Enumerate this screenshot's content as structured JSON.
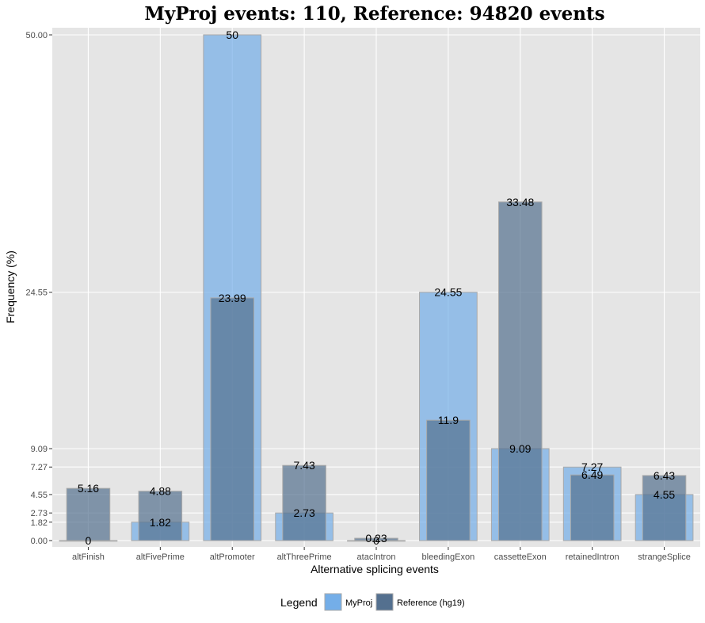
{
  "chart_data": {
    "type": "bar",
    "title": "MyProj events: 110, Reference: 94820 events",
    "xlabel": "Alternative splicing events",
    "ylabel": "Frequency (%)",
    "ylim": [
      0,
      50
    ],
    "y_ticks": [
      "0.00",
      "1.82",
      "2.73",
      "4.55",
      "7.27",
      "9.09",
      "24.55",
      "50.00"
    ],
    "y_tick_values": [
      0,
      1.82,
      2.73,
      4.55,
      7.27,
      9.09,
      24.55,
      50
    ],
    "categories": [
      "altFinish",
      "altFivePrime",
      "altPromoter",
      "altThreePrime",
      "atacIntron",
      "bleedingExon",
      "cassetteExon",
      "retainedIntron",
      "strangeSplice"
    ],
    "series": [
      {
        "name": "MyProj",
        "color": "#74aee8",
        "values": [
          0,
          1.82,
          50,
          2.73,
          0,
          24.55,
          9.09,
          7.27,
          4.55
        ],
        "labels": [
          "0",
          "1.82",
          "50",
          "2.73",
          "0",
          "24.55",
          "9.09",
          "7.27",
          "4.55"
        ]
      },
      {
        "name": "Reference (hg19)",
        "color": "#54708f",
        "values": [
          5.16,
          4.88,
          23.99,
          7.43,
          0.23,
          11.9,
          33.48,
          6.49,
          6.43
        ],
        "labels": [
          "5.16",
          "4.88",
          "23.99",
          "7.43",
          "0.23",
          "11.9",
          "33.48",
          "6.49",
          "6.43"
        ]
      }
    ],
    "legend": {
      "title": "Legend",
      "position": "bottom"
    },
    "grid": true,
    "panel_color": "#e5e5e5"
  }
}
